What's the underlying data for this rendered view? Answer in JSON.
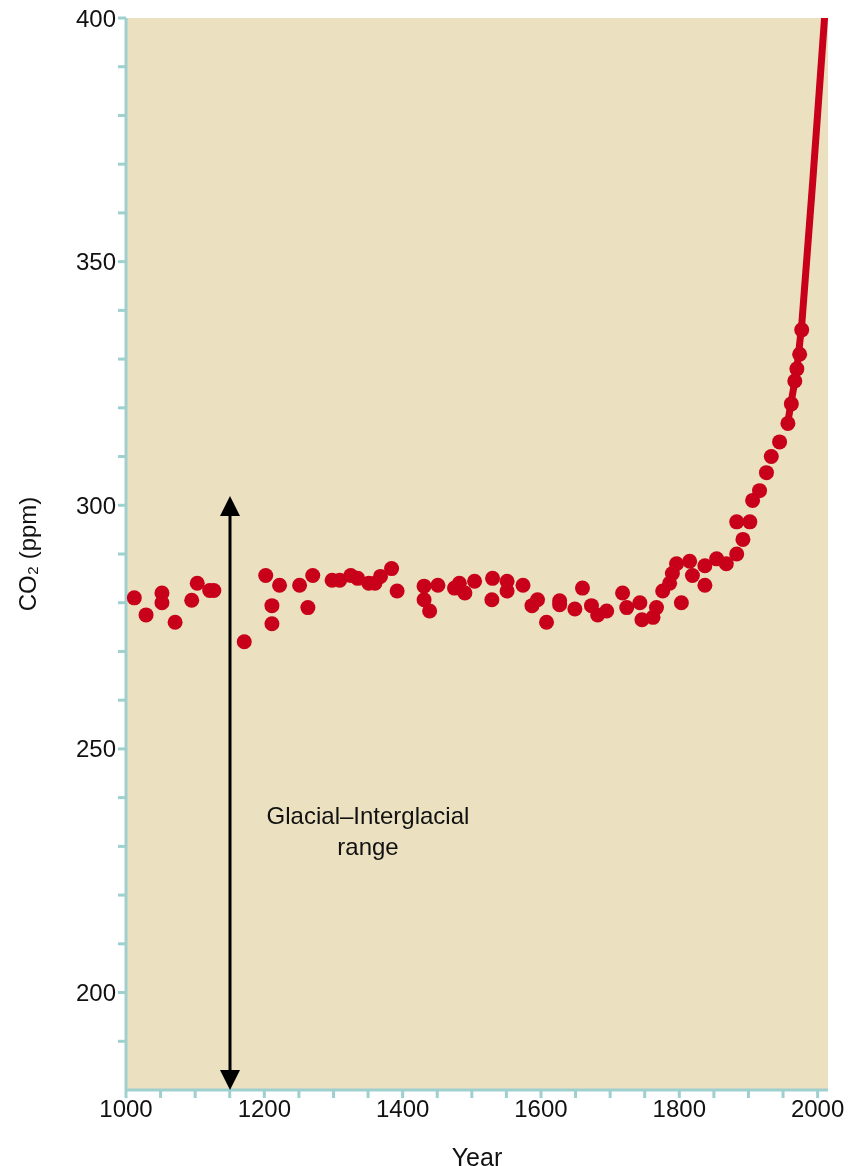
{
  "chart_data": {
    "type": "scatter",
    "xlabel": "Year",
    "ylabel": "CO₂ (ppm)",
    "xlim": [
      1000,
      2015
    ],
    "xticks": [
      1000,
      {
        "value": 1050,
        "label": null
      },
      {
        "value": 1100,
        "label": null
      },
      {
        "value": 1150,
        "label": null
      },
      1200,
      {
        "value": 1250,
        "label": null
      },
      {
        "value": 1300,
        "label": null
      },
      {
        "value": 1350,
        "label": null
      },
      1400,
      {
        "value": 1450,
        "label": null
      },
      {
        "value": 1500,
        "label": null
      },
      {
        "value": 1550,
        "label": null
      },
      1600,
      {
        "value": 1650,
        "label": null
      },
      {
        "value": 1700,
        "label": null
      },
      {
        "value": 1750,
        "label": null
      },
      1800,
      {
        "value": 1850,
        "label": null
      },
      {
        "value": 1900,
        "label": null
      },
      {
        "value": 1950,
        "label": null
      },
      2000
    ],
    "ylim": [
      180,
      400
    ],
    "yticks": [
      {
        "value": 190,
        "label": null
      },
      200,
      {
        "value": 210,
        "label": null
      },
      {
        "value": 220,
        "label": null
      },
      {
        "value": 230,
        "label": null
      },
      {
        "value": 240,
        "label": null
      },
      250,
      {
        "value": 260,
        "label": null
      },
      {
        "value": 270,
        "label": null
      },
      {
        "value": 280,
        "label": null
      },
      {
        "value": 290,
        "label": null
      },
      300,
      {
        "value": 310,
        "label": null
      },
      {
        "value": 320,
        "label": null
      },
      {
        "value": 330,
        "label": null
      },
      {
        "value": 340,
        "label": null
      },
      350,
      {
        "value": 360,
        "label": null
      },
      {
        "value": 370,
        "label": null
      },
      {
        "value": 380,
        "label": null
      },
      {
        "value": 390,
        "label": null
      },
      400
    ],
    "grid": false,
    "legend": false,
    "marker": "circle",
    "series": [
      {
        "color": "#c8001a",
        "x": [
          1012,
          1029,
          1052,
          1052,
          1071,
          1095,
          1103,
          1121,
          1127,
          1171,
          1202,
          1211,
          1211,
          1222,
          1251,
          1263,
          1270,
          1298,
          1309,
          1325,
          1335,
          1351,
          1360,
          1368,
          1384,
          1392,
          1431,
          1439,
          1431,
          1451,
          1475,
          1482,
          1490,
          1504,
          1530,
          1529,
          1551,
          1551,
          1574,
          1587,
          1595,
          1608,
          1627,
          1627,
          1649,
          1660,
          1673,
          1682,
          1695,
          1718,
          1724,
          1743,
          1746,
          1762,
          1767,
          1776,
          1786,
          1790,
          1796,
          1803,
          1815,
          1819,
          1837,
          1837,
          1854,
          1868,
          1883,
          1892,
          1883,
          1902,
          1906,
          1916,
          1926,
          1933,
          1945,
          1957,
          1962,
          1967,
          1970,
          1974,
          1977
        ],
        "values": [
          281,
          277.5,
          282,
          280,
          276,
          280.5,
          284,
          282.5,
          282.5,
          272,
          285.6,
          279.4,
          275.7,
          283.6,
          283.6,
          279,
          285.6,
          284.6,
          284.6,
          285.6,
          285,
          284,
          284,
          285.4,
          287,
          282.4,
          280.6,
          278.3,
          283.4,
          283.6,
          283,
          284,
          282,
          284.4,
          285,
          280.6,
          284.4,
          282.4,
          283.6,
          279.4,
          280.6,
          276,
          280.4,
          279.6,
          278.7,
          283,
          279.4,
          277.5,
          278.3,
          282,
          279,
          280,
          276.5,
          277,
          279,
          282.4,
          284,
          286,
          288,
          280,
          288.5,
          285.6,
          287.6,
          283.6,
          289,
          288,
          290,
          293,
          296.6,
          296.6,
          301,
          303,
          306.7,
          310,
          313,
          316.8,
          320.8,
          325.5,
          328,
          331,
          336
        ]
      },
      {
        "type": "line",
        "color": "#c8001a",
        "marker": "none",
        "x": [
          1958,
          1970,
          1977,
          1993,
          2010
        ],
        "values": [
          318,
          328,
          337,
          366.6,
          400
        ]
      }
    ],
    "annotations": [
      "Glacial–Interglacial range"
    ]
  }
}
